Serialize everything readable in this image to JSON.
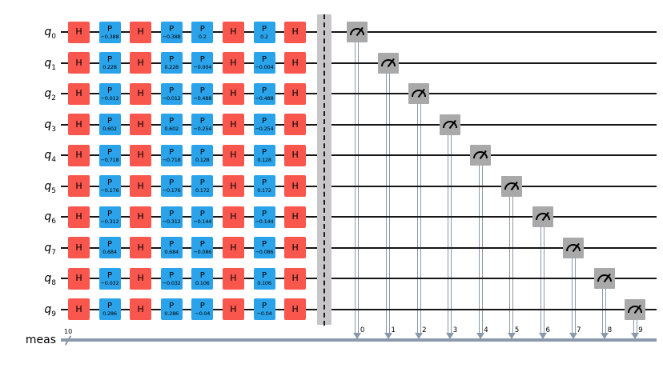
{
  "diagram_type": "quantum-circuit",
  "colors": {
    "h_gate": "#F9564E",
    "p_gate": "#2AA3EA",
    "measure_box": "#A9A9A9",
    "barrier_band": "#C9C6CA",
    "quantum_wire": "#161616",
    "classical_wire": "#8A99AB",
    "text": "#000000"
  },
  "register": {
    "quantum_prefix": "q",
    "classical_label": "meas",
    "classical_size": "10"
  },
  "barrier": {
    "present": true
  },
  "qubits": [
    {
      "index": "0",
      "clbit": "0",
      "gates": [
        {
          "g": "H"
        },
        {
          "g": "P",
          "v": "−0.388"
        },
        {
          "g": "H"
        },
        {
          "g": "P",
          "v": "−0.388"
        },
        {
          "g": "P",
          "v": "0.2"
        },
        {
          "g": "H"
        },
        {
          "g": "P",
          "v": "0.2"
        },
        {
          "g": "H"
        }
      ]
    },
    {
      "index": "1",
      "clbit": "1",
      "gates": [
        {
          "g": "H"
        },
        {
          "g": "P",
          "v": "0.228"
        },
        {
          "g": "H"
        },
        {
          "g": "P",
          "v": "0.228"
        },
        {
          "g": "P",
          "v": "−0.004"
        },
        {
          "g": "H"
        },
        {
          "g": "P",
          "v": "−0.004"
        },
        {
          "g": "H"
        }
      ]
    },
    {
      "index": "2",
      "clbit": "2",
      "gates": [
        {
          "g": "H"
        },
        {
          "g": "P",
          "v": "−0.012"
        },
        {
          "g": "H"
        },
        {
          "g": "P",
          "v": "−0.012"
        },
        {
          "g": "P",
          "v": "−0.488"
        },
        {
          "g": "H"
        },
        {
          "g": "P",
          "v": "−0.488"
        },
        {
          "g": "H"
        }
      ]
    },
    {
      "index": "3",
      "clbit": "3",
      "gates": [
        {
          "g": "H"
        },
        {
          "g": "P",
          "v": "0.602"
        },
        {
          "g": "H"
        },
        {
          "g": "P",
          "v": "0.602"
        },
        {
          "g": "P",
          "v": "−0.254"
        },
        {
          "g": "H"
        },
        {
          "g": "P",
          "v": "−0.254"
        },
        {
          "g": "H"
        }
      ]
    },
    {
      "index": "4",
      "clbit": "4",
      "gates": [
        {
          "g": "H"
        },
        {
          "g": "P",
          "v": "−0.718"
        },
        {
          "g": "H"
        },
        {
          "g": "P",
          "v": "−0.718"
        },
        {
          "g": "P",
          "v": "0.128"
        },
        {
          "g": "H"
        },
        {
          "g": "P",
          "v": "0.128"
        },
        {
          "g": "H"
        }
      ]
    },
    {
      "index": "5",
      "clbit": "5",
      "gates": [
        {
          "g": "H"
        },
        {
          "g": "P",
          "v": "−0.176"
        },
        {
          "g": "H"
        },
        {
          "g": "P",
          "v": "−0.176"
        },
        {
          "g": "P",
          "v": "0.172"
        },
        {
          "g": "H"
        },
        {
          "g": "P",
          "v": "0.172"
        },
        {
          "g": "H"
        }
      ]
    },
    {
      "index": "6",
      "clbit": "6",
      "gates": [
        {
          "g": "H"
        },
        {
          "g": "P",
          "v": "−0.312"
        },
        {
          "g": "H"
        },
        {
          "g": "P",
          "v": "−0.312"
        },
        {
          "g": "P",
          "v": "−0.144"
        },
        {
          "g": "H"
        },
        {
          "g": "P",
          "v": "−0.144"
        },
        {
          "g": "H"
        }
      ]
    },
    {
      "index": "7",
      "clbit": "7",
      "gates": [
        {
          "g": "H"
        },
        {
          "g": "P",
          "v": "0.684"
        },
        {
          "g": "H"
        },
        {
          "g": "P",
          "v": "0.684"
        },
        {
          "g": "P",
          "v": "−0.086"
        },
        {
          "g": "H"
        },
        {
          "g": "P",
          "v": "−0.086"
        },
        {
          "g": "H"
        }
      ]
    },
    {
      "index": "8",
      "clbit": "8",
      "gates": [
        {
          "g": "H"
        },
        {
          "g": "P",
          "v": "−0.032"
        },
        {
          "g": "H"
        },
        {
          "g": "P",
          "v": "−0.032"
        },
        {
          "g": "P",
          "v": "0.106"
        },
        {
          "g": "H"
        },
        {
          "g": "P",
          "v": "0.106"
        },
        {
          "g": "H"
        }
      ]
    },
    {
      "index": "9",
      "clbit": "9",
      "gates": [
        {
          "g": "H"
        },
        {
          "g": "P",
          "v": "0.286"
        },
        {
          "g": "H"
        },
        {
          "g": "P",
          "v": "0.286"
        },
        {
          "g": "P",
          "v": "−0.04"
        },
        {
          "g": "H"
        },
        {
          "g": "P",
          "v": "−0.04"
        },
        {
          "g": "H"
        }
      ]
    }
  ]
}
